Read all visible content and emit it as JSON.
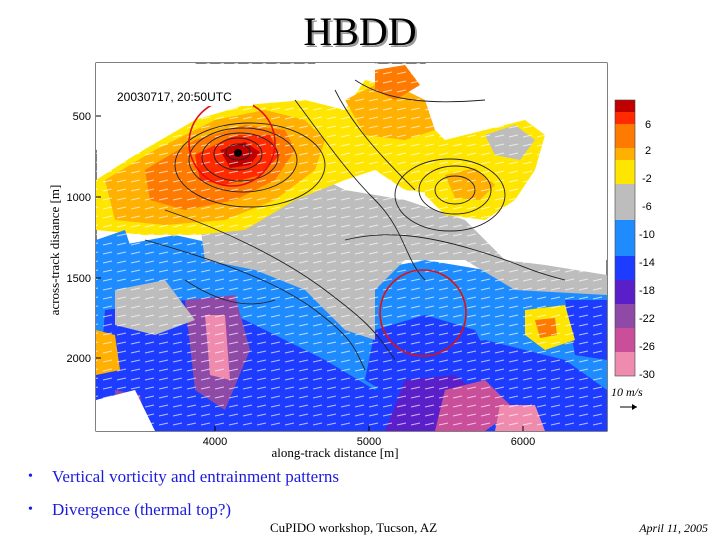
{
  "slide": {
    "title": "HBDD",
    "bullets": [
      "Vertical vorticity and entrainment patterns",
      "Divergence (thermal top?)"
    ],
    "footer_center": "CuPIDO workshop, Tucson, AZ",
    "footer_date": "April 11, 2005"
  },
  "figure": {
    "timestamp": "20030717, 20:50UTC",
    "xlabel": "along-track distance [m]",
    "ylabel": "across-track distance [m]",
    "x_ticks": [
      "4000",
      "5000",
      "6000"
    ],
    "y_ticks": [
      "500",
      "1000",
      "1500",
      "2000"
    ],
    "colorbar_ticks": [
      "6",
      "2",
      "-2",
      "-6",
      "-10",
      "-14",
      "-18",
      "-22",
      "-26",
      "-30"
    ],
    "colorbar_colors": [
      "#c00000",
      "#ff2a00",
      "#ff7a00",
      "#ffb000",
      "#ffe600",
      "#bdbdbd",
      "#1e8cff",
      "#1e3cff",
      "#5b1fc9",
      "#8f4aa8",
      "#c94f9a",
      "#f08bb0"
    ],
    "vector_scale_label": "10 m/s"
  }
}
